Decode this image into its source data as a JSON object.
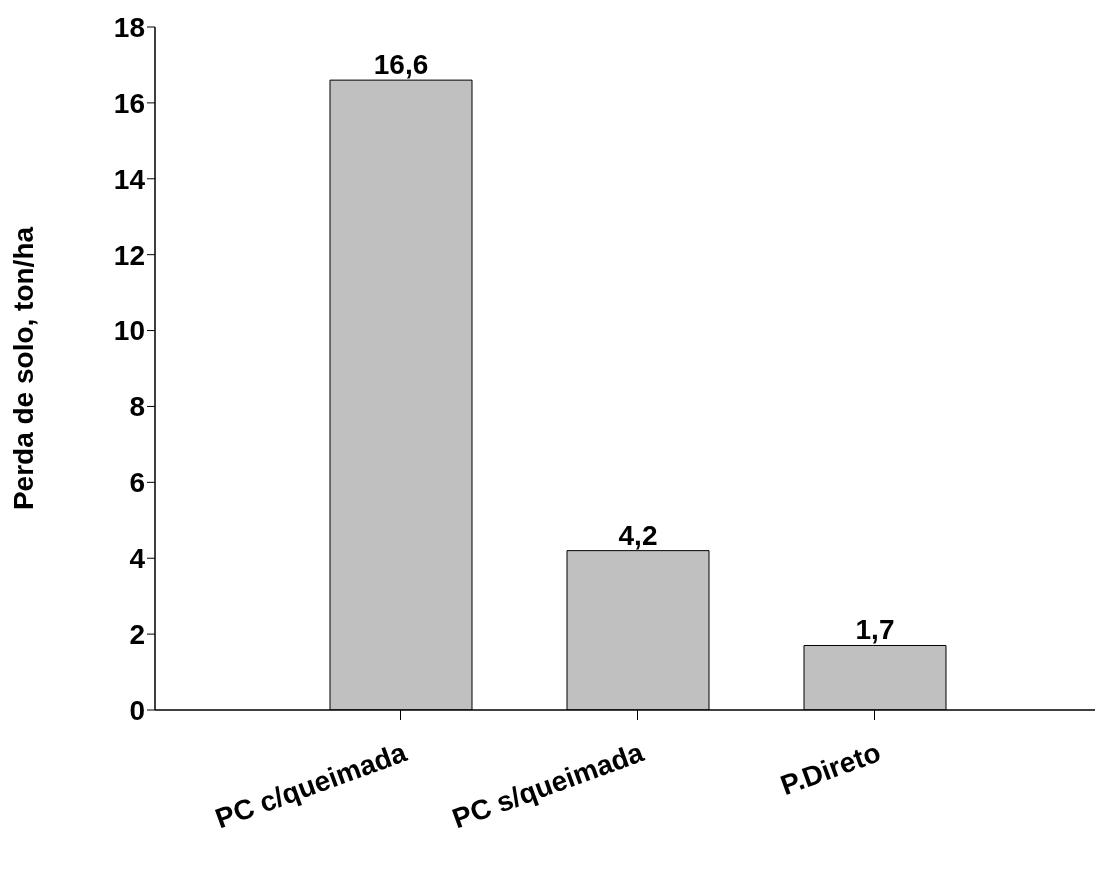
{
  "chart_data": {
    "type": "bar",
    "ylabel": "Perda de solo, ton/ha",
    "categories": [
      "PC c/queimada",
      "PC s/queimada",
      "P.Direto"
    ],
    "values": [
      16.6,
      4.2,
      1.7
    ],
    "color": "#c0c0c0",
    "value_labels": [
      "16,6",
      "4,2",
      "1,7"
    ],
    "ylim": [
      0,
      18
    ],
    "yticks": [
      0,
      2,
      4,
      6,
      8,
      10,
      12,
      14,
      16,
      18
    ],
    "grid": false,
    "legend": false
  }
}
